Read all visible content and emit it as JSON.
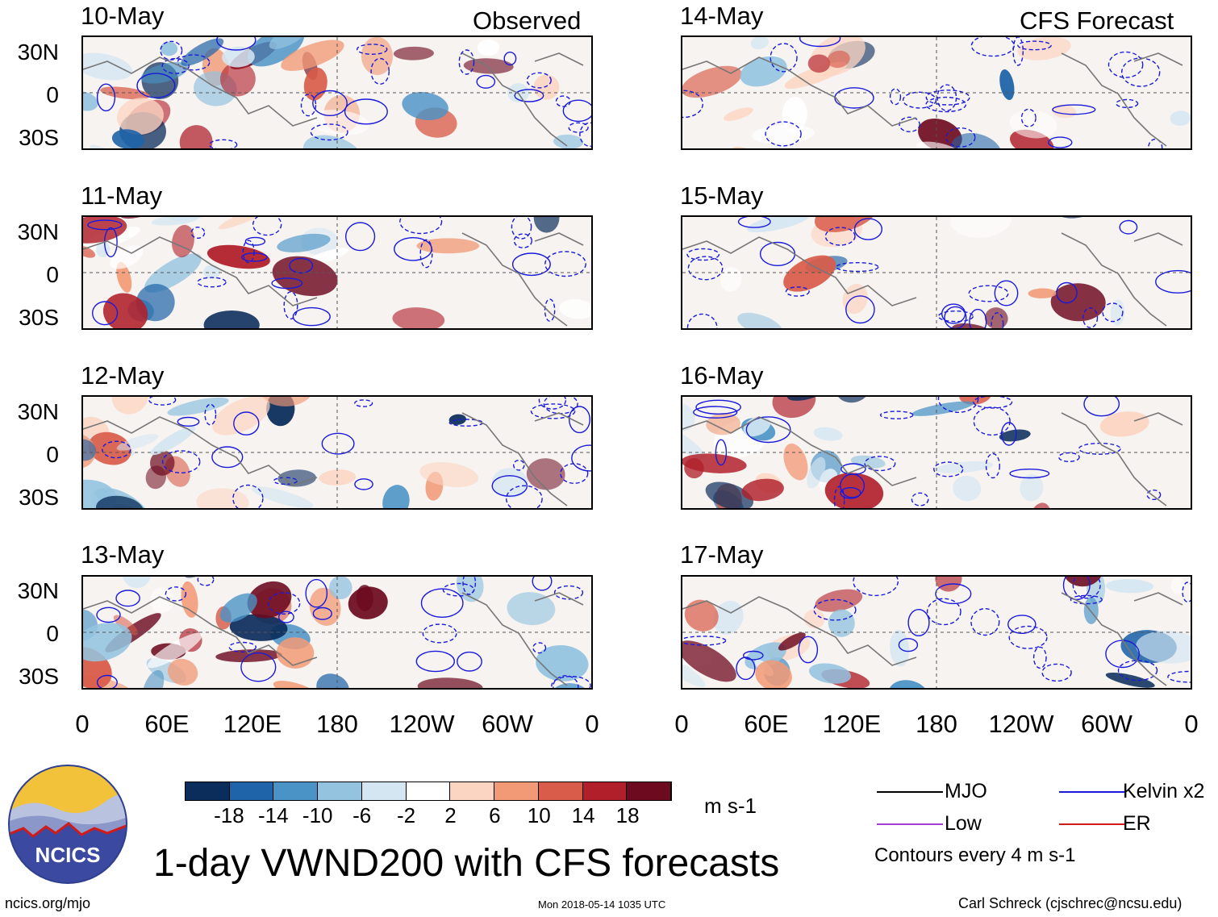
{
  "headers": {
    "observed": "Observed",
    "forecast": "CFS Forecast"
  },
  "panels": [
    {
      "date": "10-May",
      "group": "observed"
    },
    {
      "date": "11-May",
      "group": "observed"
    },
    {
      "date": "12-May",
      "group": "observed"
    },
    {
      "date": "13-May",
      "group": "observed"
    },
    {
      "date": "14-May",
      "group": "forecast"
    },
    {
      "date": "15-May",
      "group": "forecast"
    },
    {
      "date": "16-May",
      "group": "forecast"
    },
    {
      "date": "17-May",
      "group": "forecast"
    }
  ],
  "lat_labels": [
    "30N",
    "0",
    "30S"
  ],
  "lon_labels": [
    "0",
    "60E",
    "120E",
    "180",
    "120W",
    "60W",
    "0"
  ],
  "colorbar": {
    "colors": [
      "#0b2d5b",
      "#1f64a8",
      "#4a93c6",
      "#93c3df",
      "#d3e6f2",
      "#ffffff",
      "#fcd5c2",
      "#f29a76",
      "#d95b49",
      "#b01f2a",
      "#6d0a1f"
    ],
    "ticks": [
      "-18",
      "-14",
      "-10",
      "-6",
      "-2",
      "2",
      "6",
      "10",
      "14",
      "18"
    ],
    "units": "m s-1"
  },
  "legend": {
    "items": [
      {
        "label": "MJO",
        "color": "#000000"
      },
      {
        "label": "Kelvin x2",
        "color": "#1a1adb"
      },
      {
        "label": "Low",
        "color": "#a23fd1"
      },
      {
        "label": "ER",
        "color": "#d11a1a"
      }
    ],
    "contour_note": "Contours every 4 m s-1"
  },
  "logo": {
    "text": "NCICS"
  },
  "title": "1-day VWND200 with CFS forecasts",
  "footer": {
    "left": "ncics.org/mjo",
    "center": "Mon 2018-05-14 1035 UTC",
    "right": "Carl Schreck (cjschrec@ncsu.edu)"
  }
}
